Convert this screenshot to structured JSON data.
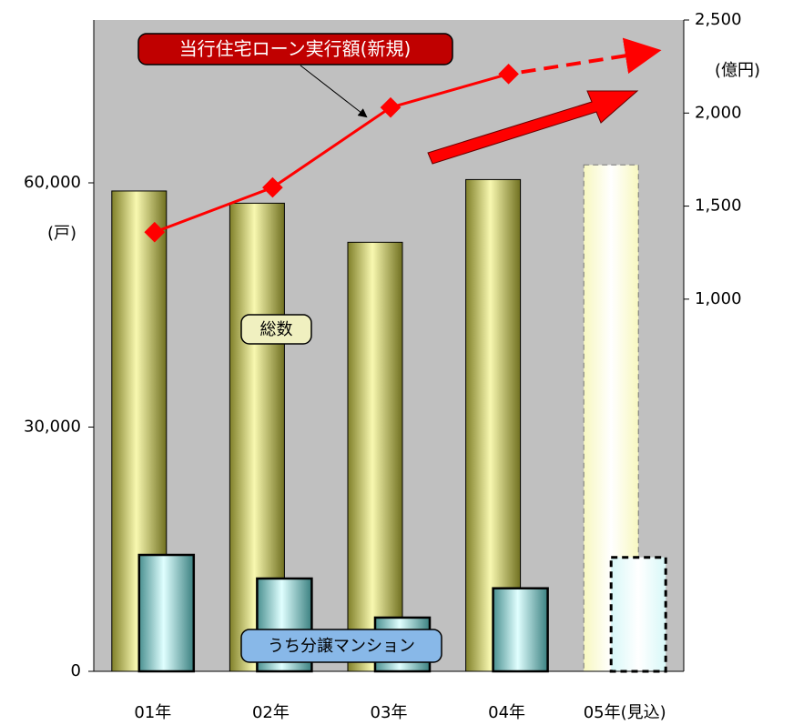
{
  "chart_data": {
    "type": "bar_line",
    "categories": [
      "01年",
      "02年",
      "03年",
      "04年",
      "05年(見込)"
    ],
    "series": [
      {
        "name": "総数",
        "type": "bar",
        "color": "#d8d870",
        "values": [
          59000,
          57500,
          52700,
          60400,
          62200
        ]
      },
      {
        "name": "うち分譲マンション",
        "type": "bar",
        "color": "#9fdcdc",
        "values": [
          14300,
          11400,
          6600,
          10200,
          14000
        ]
      },
      {
        "name": "当行住宅ローン実行額(新規)",
        "type": "line",
        "axis": "y2",
        "color": "#ff0000",
        "values": [
          1360,
          1600,
          2030,
          2210,
          null
        ]
      }
    ],
    "ylim": [
      0,
      80000
    ],
    "yticks": [
      0,
      {
        "value": 30000,
        "label": "30,000"
      },
      {
        "value": 60000,
        "label": "60,000"
      }
    ],
    "y2lim": [
      -1000,
      2500
    ],
    "y2ticks": [
      {
        "value": 1000,
        "label": "1,000"
      },
      {
        "value": 1500,
        "label": "1,500"
      },
      {
        "value": 2000,
        "label": "2,000"
      },
      {
        "value": 2500,
        "label": "2,500"
      }
    ],
    "ylabel": "(戸)",
    "y2label": "(億円)",
    "background": "#c0c0c0"
  }
}
